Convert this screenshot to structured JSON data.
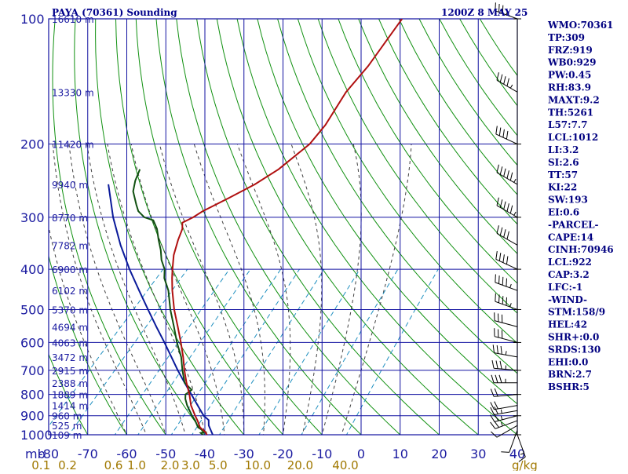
{
  "header": {
    "title": "PAYA (70361) Sounding",
    "datetime": "1200Z  8 MAY 25"
  },
  "indices": [
    "WMO:70361",
    "TP:309",
    "FRZ:919",
    "WB0:929",
    "PW:0.45",
    "RH:83.9",
    "MAXT:9.2",
    "TH:5261",
    "L57:7.7",
    "LCL:1012",
    "LI:3.2",
    "SI:2.6",
    "TT:57",
    "KI:22",
    "SW:193",
    "EI:0.6",
    "-PARCEL-",
    "CAPE:14",
    "CINH:70946",
    "LCL:922",
    "CAP:3.2",
    "LFC:-1",
    "-WIND-",
    "STM:158/9",
    "HEL:42",
    "SHR+:0.0",
    "SRDS:130",
    "EHI:0.0",
    "BRN:2.7",
    "BSHR:5"
  ],
  "colors": {
    "background": "#ffffff",
    "grid": "#1010a0",
    "dry_adiabat": "#109010",
    "moist_adiabat": "#404040",
    "mixing_ratio": "#2090c0",
    "temperature": "#b01010",
    "dewpoint": "#105010",
    "parcel": "#0a1a9a"
  },
  "chart_data": {
    "type": "skew-t",
    "xlabel": "mb",
    "temperature_ticks": [
      "-80",
      "-70",
      "-60",
      "-50",
      "-40",
      "-30",
      "-20",
      "-10",
      "0",
      "10",
      "20",
      "30",
      "40"
    ],
    "mixing_ratio_ticks": [
      "0.1",
      "0.2",
      "0.6",
      "1.0",
      "2.0",
      "3.0",
      "5.0",
      "10.0",
      "20.0",
      "40.0"
    ],
    "mixing_ratio_unit": "g/kg",
    "pressure_levels": [
      "100",
      "200",
      "300",
      "400",
      "500",
      "600",
      "700",
      "800",
      "900",
      "1000"
    ],
    "height_labels": [
      {
        "p": 100,
        "label": "16610 m"
      },
      {
        "p": 150,
        "label": "13330 m"
      },
      {
        "p": 200,
        "label": "11420 m"
      },
      {
        "p": 250,
        "label": "9940 m"
      },
      {
        "p": 300,
        "label": "8770 m"
      },
      {
        "p": 350,
        "label": "7782 m"
      },
      {
        "p": 400,
        "label": "6900 m"
      },
      {
        "p": 450,
        "label": "6102 m"
      },
      {
        "p": 500,
        "label": "5370 m"
      },
      {
        "p": 550,
        "label": "4694 m"
      },
      {
        "p": 600,
        "label": "4063 m"
      },
      {
        "p": 650,
        "label": "3472 m"
      },
      {
        "p": 700,
        "label": "2915 m"
      },
      {
        "p": 750,
        "label": "2388 m"
      },
      {
        "p": 800,
        "label": "1889 m"
      },
      {
        "p": 850,
        "label": "1414 m"
      },
      {
        "p": 900,
        "label": "960 m"
      },
      {
        "p": 950,
        "label": "525 m"
      },
      {
        "p": 1000,
        "label": "109 m"
      }
    ],
    "temperature_profile": [
      [
        1012,
        1.5
      ],
      [
        1000,
        0.5
      ],
      [
        985,
        -0.5
      ],
      [
        960,
        -3.0
      ],
      [
        925,
        -5.2
      ],
      [
        900,
        -7.0
      ],
      [
        850,
        -10.5
      ],
      [
        800,
        -13.5
      ],
      [
        750,
        -17.0
      ],
      [
        700,
        -20.5
      ],
      [
        650,
        -24.0
      ],
      [
        600,
        -28.0
      ],
      [
        550,
        -32.5
      ],
      [
        500,
        -37.5
      ],
      [
        450,
        -42.5
      ],
      [
        420,
        -45.5
      ],
      [
        400,
        -47.5
      ],
      [
        370,
        -50.5
      ],
      [
        340,
        -53.0
      ],
      [
        320,
        -54.5
      ],
      [
        309,
        -56.0
      ],
      [
        300,
        -54.5
      ],
      [
        290,
        -53.5
      ],
      [
        270,
        -50.0
      ],
      [
        250,
        -46.5
      ],
      [
        230,
        -44.0
      ],
      [
        200,
        -42.0
      ],
      [
        180,
        -42.5
      ],
      [
        150,
        -45.0
      ],
      [
        130,
        -45.5
      ],
      [
        100,
        -48.0
      ]
    ],
    "dewpoint_profile": [
      [
        1012,
        0.0
      ],
      [
        1000,
        -0.5
      ],
      [
        990,
        -1.5
      ],
      [
        985,
        -0.5
      ],
      [
        960,
        -3.5
      ],
      [
        925,
        -5.8
      ],
      [
        900,
        -7.8
      ],
      [
        850,
        -11.5
      ],
      [
        820,
        -13.5
      ],
      [
        800,
        -14.5
      ],
      [
        780,
        -14.0
      ],
      [
        750,
        -17.5
      ],
      [
        700,
        -21.0
      ],
      [
        650,
        -24.5
      ],
      [
        600,
        -29.0
      ],
      [
        550,
        -33.5
      ],
      [
        500,
        -38.5
      ],
      [
        450,
        -43.5
      ],
      [
        420,
        -47.5
      ],
      [
        400,
        -49.5
      ],
      [
        380,
        -52.5
      ],
      [
        360,
        -55.0
      ],
      [
        340,
        -58.0
      ],
      [
        320,
        -61.0
      ],
      [
        305,
        -64.0
      ],
      [
        300,
        -67.0
      ],
      [
        290,
        -70.0
      ],
      [
        280,
        -72.0
      ],
      [
        260,
        -76.0
      ],
      [
        245,
        -78.0
      ],
      [
        230,
        -79.5
      ]
    ],
    "parcel_profile": [
      [
        1012,
        3.0
      ],
      [
        1000,
        2.0
      ],
      [
        950,
        -1.2
      ],
      [
        922,
        -2.5
      ],
      [
        900,
        -4.8
      ],
      [
        850,
        -8.8
      ],
      [
        800,
        -13.0
      ],
      [
        750,
        -17.5
      ],
      [
        700,
        -22.2
      ],
      [
        650,
        -27.0
      ],
      [
        600,
        -32.2
      ],
      [
        550,
        -38.0
      ],
      [
        500,
        -44.2
      ],
      [
        450,
        -51.0
      ],
      [
        400,
        -58.5
      ],
      [
        350,
        -66.5
      ],
      [
        300,
        -75.0
      ],
      [
        250,
        -84.0
      ]
    ],
    "wind_barbs": [
      {
        "p": 1000,
        "dir": 160,
        "spd": 5
      },
      {
        "p": 975,
        "dir": 200,
        "spd": 10
      },
      {
        "p": 950,
        "dir": 240,
        "spd": 10
      },
      {
        "p": 925,
        "dir": 250,
        "spd": 15
      },
      {
        "p": 900,
        "dir": 255,
        "spd": 15
      },
      {
        "p": 875,
        "dir": 260,
        "spd": 15
      },
      {
        "p": 850,
        "dir": 260,
        "spd": 20
      },
      {
        "p": 800,
        "dir": 265,
        "spd": 20
      },
      {
        "p": 750,
        "dir": 270,
        "spd": 25
      },
      {
        "p": 700,
        "dir": 275,
        "spd": 25
      },
      {
        "p": 650,
        "dir": 280,
        "spd": 25
      },
      {
        "p": 600,
        "dir": 285,
        "spd": 30
      },
      {
        "p": 550,
        "dir": 285,
        "spd": 30
      },
      {
        "p": 500,
        "dir": 290,
        "spd": 35
      },
      {
        "p": 450,
        "dir": 290,
        "spd": 35
      },
      {
        "p": 400,
        "dir": 295,
        "spd": 40
      },
      {
        "p": 350,
        "dir": 300,
        "spd": 40
      },
      {
        "p": 300,
        "dir": 300,
        "spd": 45
      },
      {
        "p": 250,
        "dir": 300,
        "spd": 45
      },
      {
        "p": 200,
        "dir": 295,
        "spd": 40
      },
      {
        "p": 150,
        "dir": 300,
        "spd": 35
      },
      {
        "p": 100,
        "dir": 290,
        "spd": 25
      }
    ],
    "grid": true
  }
}
